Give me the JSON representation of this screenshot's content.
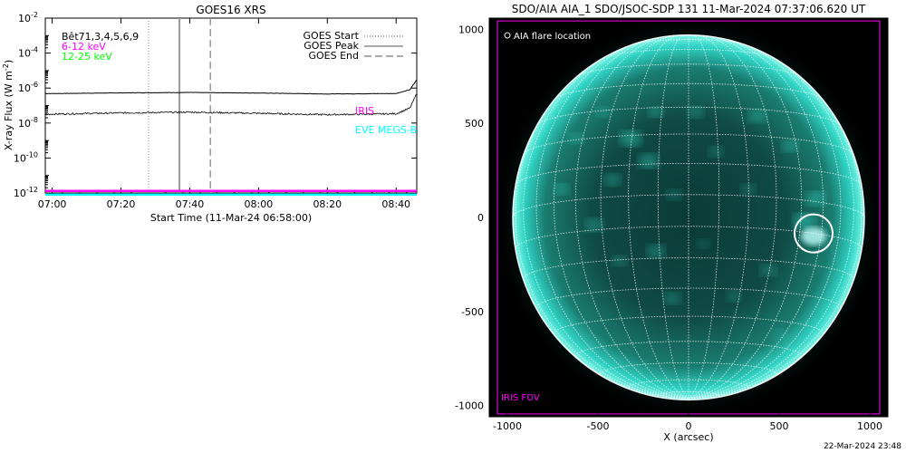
{
  "footer": {
    "timestamp": "22-Mar-2024 23:48"
  },
  "chart_data": [
    {
      "type": "line",
      "title": "GOES16 XRS",
      "xlabel": "Start Time (11-Mar-24 06:58:00)",
      "ylabel_main": "X-ray Flux (W m",
      "ylabel_sup": "-2",
      "ylabel_close": ")",
      "y_scale": "log",
      "ylim": [
        1e-12,
        0.01
      ],
      "xlim": [
        "06:58",
        "08:46"
      ],
      "x_ticks": [
        "07:00",
        "07:20",
        "07:40",
        "08:00",
        "08:20",
        "08:40"
      ],
      "y_ticks": [
        {
          "base": "10",
          "exp": "-2",
          "value": 0.01
        },
        {
          "base": "10",
          "exp": "-4",
          "value": 0.0001
        },
        {
          "base": "10",
          "exp": "-6",
          "value": 1e-06
        },
        {
          "base": "10",
          "exp": "-8",
          "value": 1e-08
        },
        {
          "base": "10",
          "exp": "-10",
          "value": 1e-10
        },
        {
          "base": "10",
          "exp": "-12",
          "value": 1e-12
        }
      ],
      "channel_labels": [
        {
          "text": "Bêt71,3,4,5,6,9",
          "color": "#000000"
        },
        {
          "text": "6-12 keV",
          "color": "#ff00ff"
        },
        {
          "text": "12-25 keV",
          "color": "#00ff00"
        }
      ],
      "legend": [
        {
          "label": "GOES Start",
          "style": "dotted"
        },
        {
          "label": "GOES Peak",
          "style": "solid"
        },
        {
          "label": "GOES End",
          "style": "dashed"
        }
      ],
      "events": {
        "start": "07:28",
        "peak": "07:37",
        "end": "07:46"
      },
      "series": [
        {
          "channel": "long",
          "color": "#000000",
          "level": 5e-07,
          "x": [
            "06:58",
            "07:20",
            "07:40",
            "08:00",
            "08:20",
            "08:40",
            "08:44",
            "08:46"
          ],
          "y": [
            4.8e-07,
            5.3e-07,
            5.6e-07,
            5.2e-07,
            4.6e-07,
            4.9e-07,
            8e-07,
            3e-06
          ]
        },
        {
          "channel": "short",
          "color": "#000000",
          "x": [
            "06:58",
            "07:20",
            "07:40",
            "08:00",
            "08:20",
            "08:40",
            "08:44",
            "08:46"
          ],
          "y": [
            3.2e-08,
            3.8e-08,
            4.2e-08,
            3.6e-08,
            3e-08,
            3.4e-08,
            7e-08,
            5e-07
          ]
        },
        {
          "channel": "6-12 keV",
          "color": "#ff00ff",
          "x": [
            "06:58",
            "08:46"
          ],
          "y": [
            1.3e-12,
            1.3e-12
          ]
        },
        {
          "channel": "12-25 keV",
          "color": "#00ffff",
          "x": [
            "06:58",
            "08:46"
          ],
          "y": [
            8e-13,
            8e-13
          ]
        }
      ],
      "annotations": [
        {
          "text": "IRIS",
          "color": "#ff00ff"
        },
        {
          "text": "EVE MEGS-B",
          "color": "#00ffff"
        }
      ]
    },
    {
      "type": "image",
      "title": "SDO/AIA AIA_1 SDO/JSOC-SDP 131 11-Mar-2024 07:37:06.620 UT",
      "xlabel": "X (arcsec)",
      "xlim": [
        -1100,
        1100
      ],
      "ylim": [
        -1060,
        1060
      ],
      "x_ticks": [
        -1000,
        -500,
        0,
        500,
        1000
      ],
      "y_ticks": [
        1000,
        500,
        0,
        -500,
        -1000
      ],
      "legend_label": "AIA flare location",
      "fov_label": "IRIS FOV",
      "fov": {
        "x": [
          -1055,
          1055
        ],
        "y": [
          -1045,
          1045
        ]
      },
      "sun_radius_arcsec": 970,
      "flare_location": {
        "x": 690,
        "y": -85,
        "radius_arcsec": 105
      },
      "colors": {
        "disk": "#2fd3c3",
        "background": "#000000",
        "fov": "#ff00ff",
        "grid": "#ffffff"
      }
    }
  ]
}
